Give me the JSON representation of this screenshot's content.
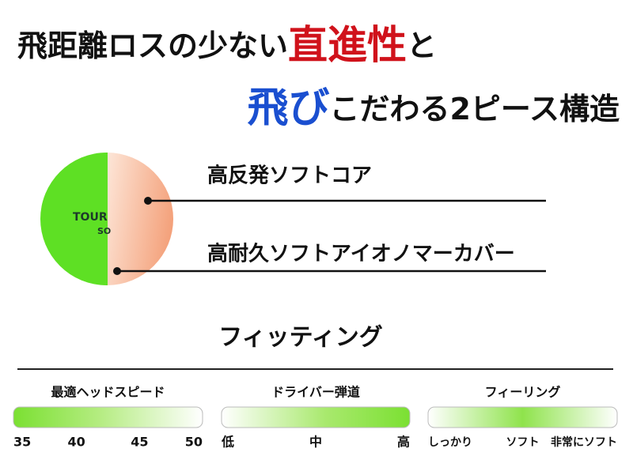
{
  "headline": {
    "line1": [
      "飛距離ロスの少ない",
      "直進性",
      "と"
    ],
    "line2": [
      "飛び",
      "こだわる2ピース構造"
    ]
  },
  "ball": {
    "text": [
      "TOUR",
      "SO"
    ]
  },
  "callouts": [
    "高反発ソフトコア",
    "高耐久ソフトアイオノマーカバー"
  ],
  "fitting": {
    "title": "フィッティング",
    "gauges": [
      {
        "label": "最適ヘッドスピード",
        "scale": [
          35,
          40,
          45,
          50
        ]
      },
      {
        "label": "ドライバー弾道",
        "scale": [
          "低",
          "中",
          "高"
        ]
      },
      {
        "label": "フィーリング",
        "scale": [
          "しっかり",
          "ソフト",
          "非常にソフト"
        ]
      }
    ]
  }
}
